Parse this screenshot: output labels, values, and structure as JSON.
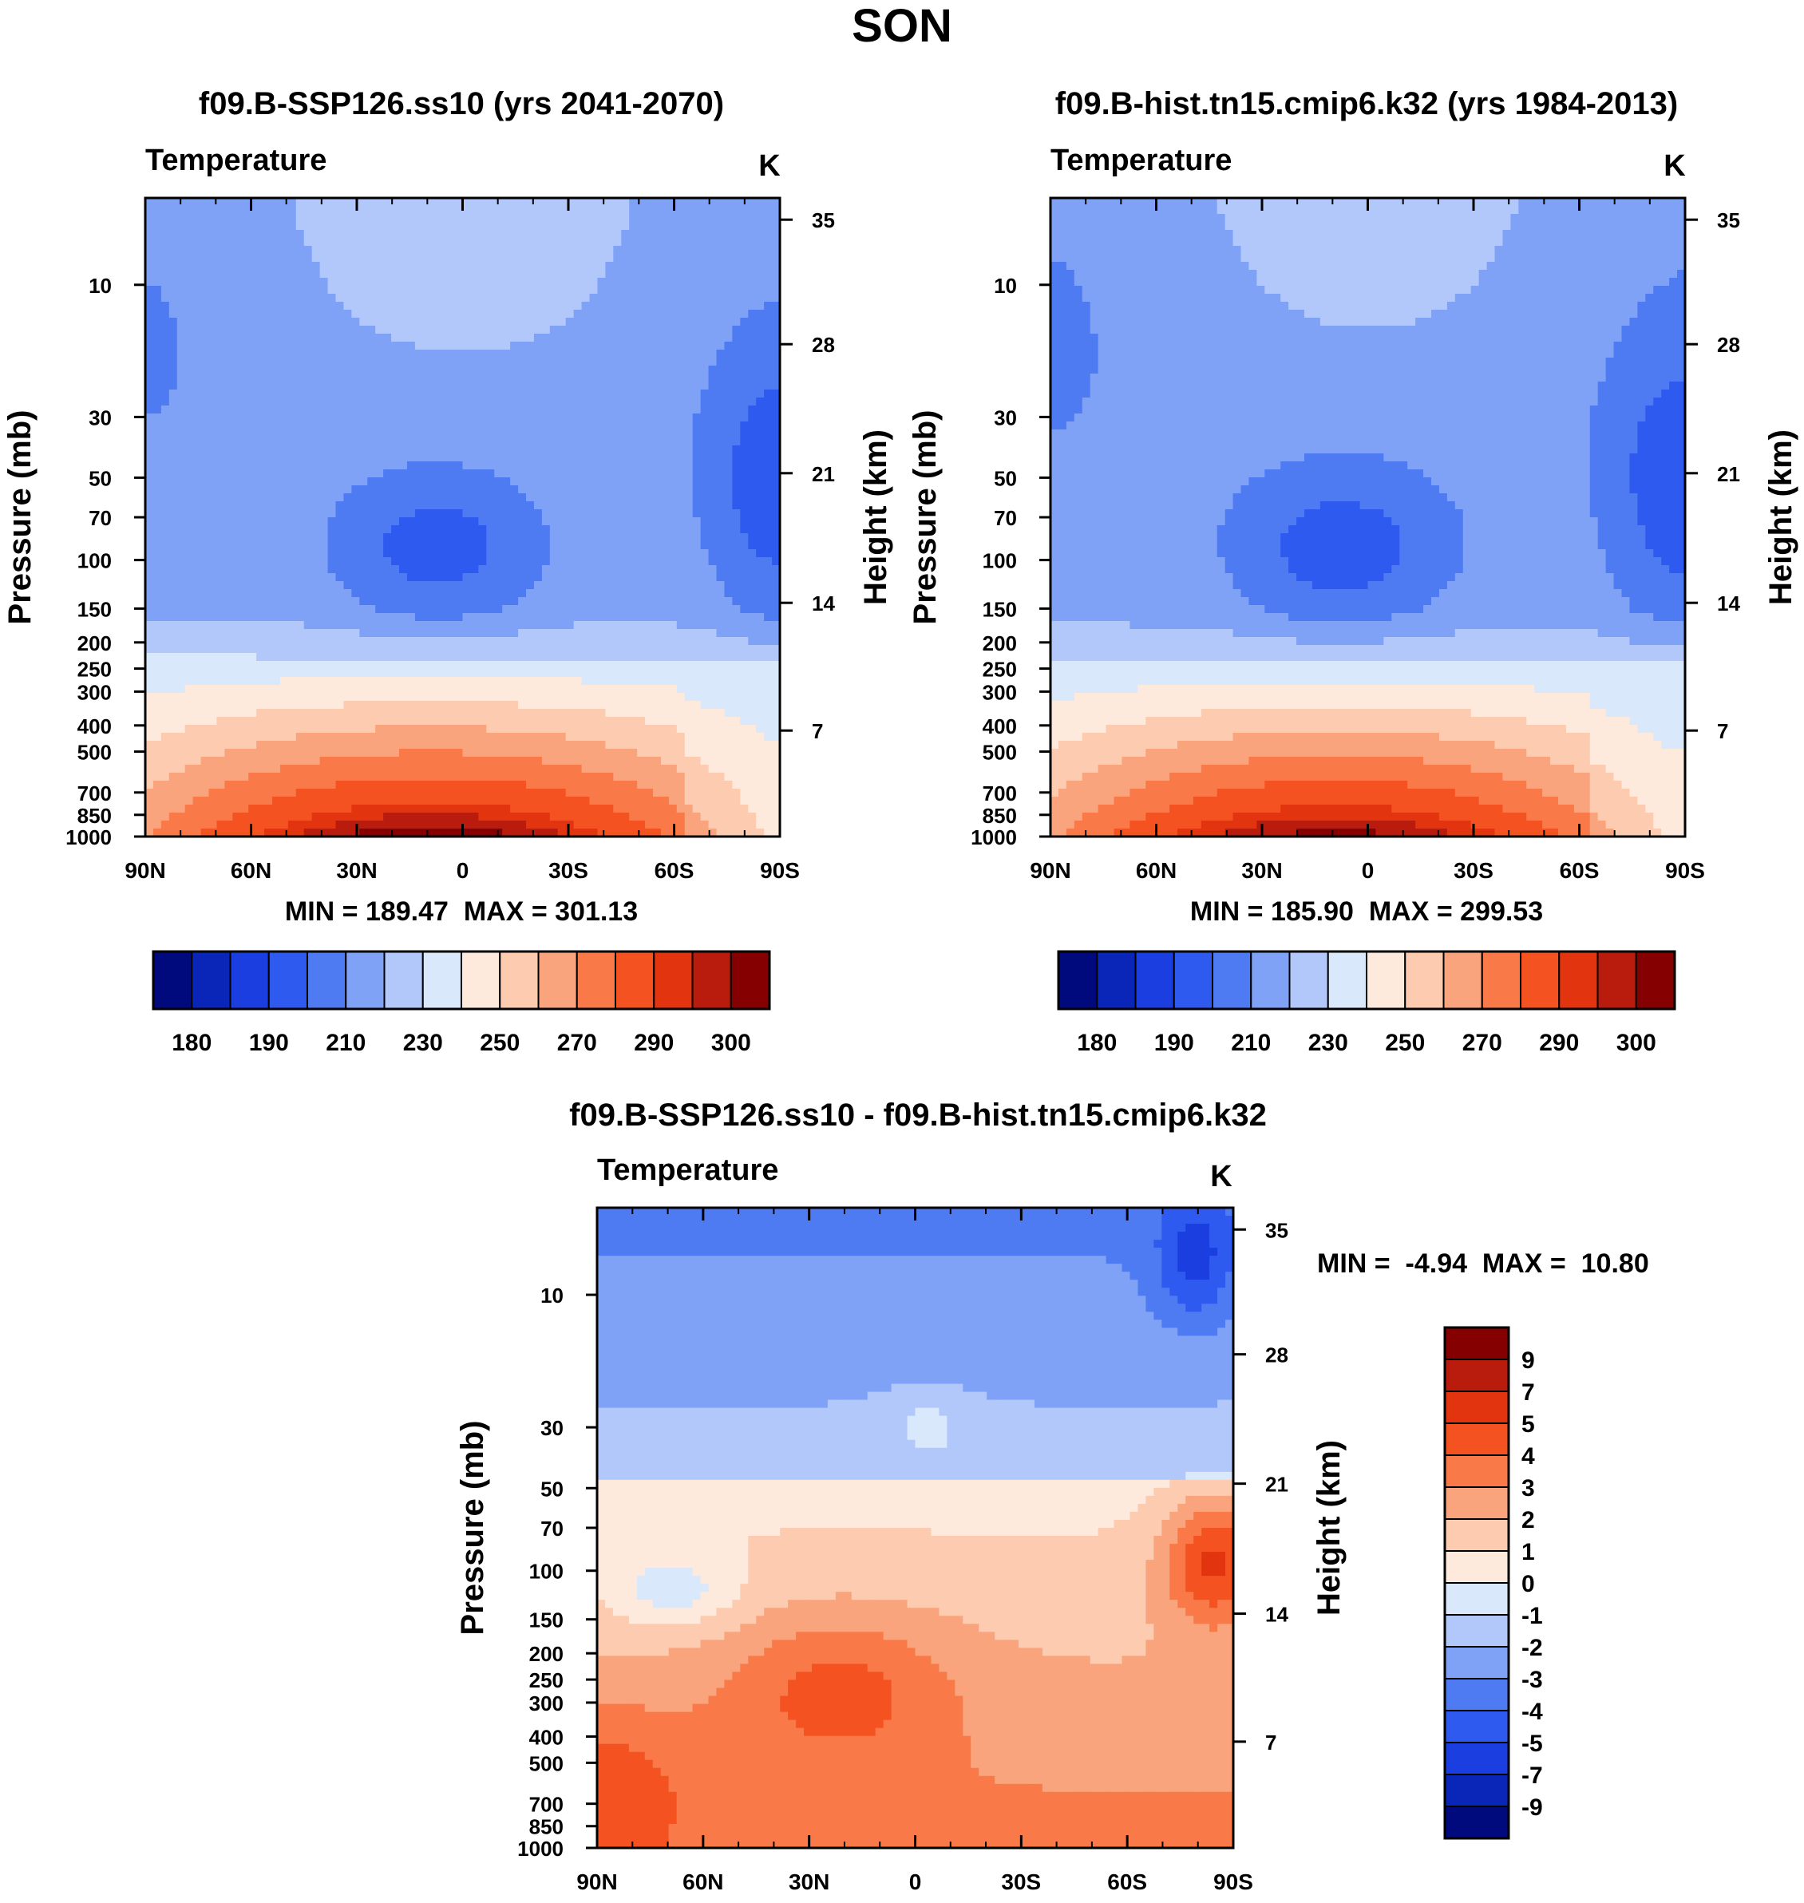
{
  "page_title": "SON",
  "palettes": {
    "abs": [
      "#000a7d",
      "#0a26b8",
      "#1a3ee0",
      "#2e5af0",
      "#4e7af2",
      "#80a2f6",
      "#b2c8fa",
      "#dae8fc",
      "#fdeadc",
      "#fccbb0",
      "#f9a47c",
      "#f97a48",
      "#f55222",
      "#e33410",
      "#b91c0c",
      "#850000"
    ],
    "diff": [
      "#000a7d",
      "#0a26b8",
      "#1a3ee0",
      "#2e5af0",
      "#4e7af2",
      "#80a2f6",
      "#b2c8fa",
      "#dae8fc",
      "#fdeadc",
      "#fccbb0",
      "#f9a47c",
      "#f97a48",
      "#f55222",
      "#e33410",
      "#b91c0c",
      "#850000"
    ]
  },
  "chart_data": [
    {
      "type": "contour",
      "title": "f09.B-SSP126.ss10 (yrs 2041-2070)",
      "label_left": "Temperature",
      "label_right": "K",
      "ylabel": "Pressure (mb)",
      "ylabel_right": "Height (km)",
      "x_ticks": [
        "90N",
        "60N",
        "30N",
        "0",
        "30S",
        "60S",
        "90S"
      ],
      "y_ticks": [
        "10",
        "30",
        "50",
        "70",
        "100",
        "150",
        "200",
        "250",
        "300",
        "400",
        "500",
        "700",
        "850",
        "1000"
      ],
      "y_right_ticks": [
        "35",
        "28",
        "21",
        "14",
        "7"
      ],
      "min": 189.47,
      "max": 301.13,
      "stats_text": "MIN = 189.47  MAX = 301.13",
      "colorbar_labels": [
        "180",
        "190",
        "210",
        "230",
        "250",
        "270",
        "290",
        "300"
      ],
      "levels": [
        175,
        180,
        185,
        190,
        200,
        210,
        220,
        230,
        240,
        250,
        260,
        270,
        280,
        290,
        295,
        300
      ]
    },
    {
      "type": "contour",
      "title": "f09.B-hist.tn15.cmip6.k32 (yrs 1984-2013)",
      "label_left": "Temperature",
      "label_right": "K",
      "ylabel": "Pressure (mb)",
      "ylabel_right": "Height (km)",
      "x_ticks": [
        "90N",
        "60N",
        "30N",
        "0",
        "30S",
        "60S",
        "90S"
      ],
      "y_ticks": [
        "10",
        "30",
        "50",
        "70",
        "100",
        "150",
        "200",
        "250",
        "300",
        "400",
        "500",
        "700",
        "850",
        "1000"
      ],
      "y_right_ticks": [
        "35",
        "28",
        "21",
        "14",
        "7"
      ],
      "min": 185.9,
      "max": 299.53,
      "stats_text": "MIN = 185.90  MAX = 299.53",
      "colorbar_labels": [
        "180",
        "190",
        "210",
        "230",
        "250",
        "270",
        "290",
        "300"
      ],
      "levels": [
        175,
        180,
        185,
        190,
        200,
        210,
        220,
        230,
        240,
        250,
        260,
        270,
        280,
        290,
        295,
        300
      ]
    },
    {
      "type": "contour",
      "title": "f09.B-SSP126.ss10 - f09.B-hist.tn15.cmip6.k32",
      "label_left": "Temperature",
      "label_right": "K",
      "ylabel": "Pressure (mb)",
      "ylabel_right": "Height (km)",
      "x_ticks": [
        "90N",
        "60N",
        "30N",
        "0",
        "30S",
        "60S",
        "90S"
      ],
      "y_ticks": [
        "10",
        "30",
        "50",
        "70",
        "100",
        "150",
        "200",
        "250",
        "300",
        "400",
        "500",
        "700",
        "850",
        "1000"
      ],
      "y_right_ticks": [
        "35",
        "28",
        "21",
        "14",
        "7"
      ],
      "min": -4.94,
      "max": 10.8,
      "stats_text": "MIN =  -4.94  MAX =  10.80",
      "colorbar_labels": [
        "9",
        "7",
        "5",
        "4",
        "3",
        "2",
        "1",
        "0",
        "-1",
        "-2",
        "-3",
        "-4",
        "-5",
        "-7",
        "-9"
      ],
      "levels": [
        -9,
        -7,
        -5,
        -4,
        -3,
        -2,
        -1,
        0,
        1,
        2,
        3,
        4,
        5,
        7,
        9
      ]
    }
  ]
}
